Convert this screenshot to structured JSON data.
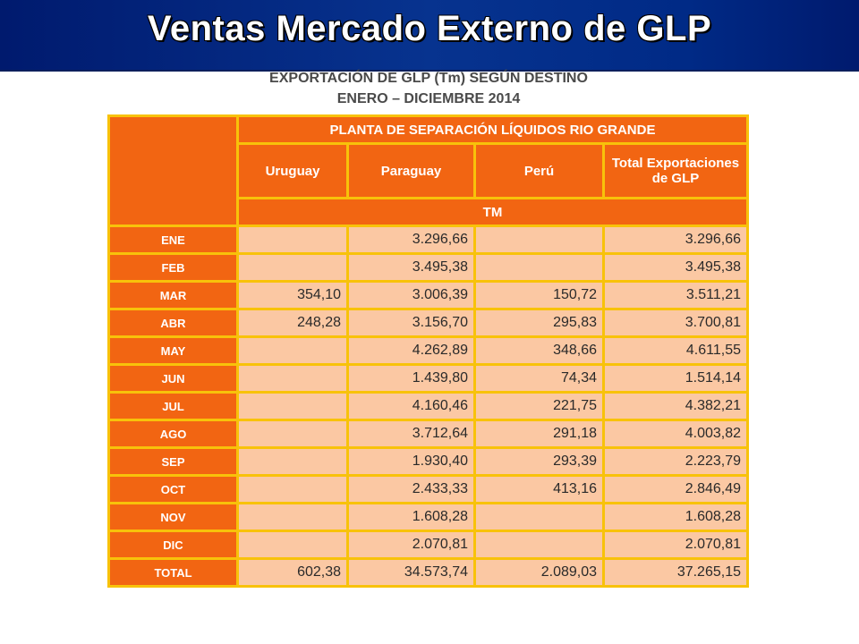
{
  "slide": {
    "title": "Ventas Mercado Externo de GLP"
  },
  "table": {
    "title_line1": "EXPORTACIÓN DE GLP (Tm) SEGÚN DESTINO",
    "title_line2": "ENERO – DICIEMBRE 2014",
    "plant_header": "PLANTA DE SEPARACIÓN LÍQUIDOS RIO GRANDE",
    "columns": [
      "Uruguay",
      "Paraguay",
      "Perú",
      "Total Exportaciones de GLP"
    ],
    "unit": "TM",
    "rows": [
      {
        "month": "ENE",
        "uruguay": "",
        "paraguay": "3.296,66",
        "peru": "",
        "total": "3.296,66"
      },
      {
        "month": "FEB",
        "uruguay": "",
        "paraguay": "3.495,38",
        "peru": "",
        "total": "3.495,38"
      },
      {
        "month": "MAR",
        "uruguay": "354,10",
        "paraguay": "3.006,39",
        "peru": "150,72",
        "total": "3.511,21"
      },
      {
        "month": "ABR",
        "uruguay": "248,28",
        "paraguay": "3.156,70",
        "peru": "295,83",
        "total": "3.700,81"
      },
      {
        "month": "MAY",
        "uruguay": "",
        "paraguay": "4.262,89",
        "peru": "348,66",
        "total": "4.611,55"
      },
      {
        "month": "JUN",
        "uruguay": "",
        "paraguay": "1.439,80",
        "peru": "74,34",
        "total": "1.514,14"
      },
      {
        "month": "JUL",
        "uruguay": "",
        "paraguay": "4.160,46",
        "peru": "221,75",
        "total": "4.382,21"
      },
      {
        "month": "AGO",
        "uruguay": "",
        "paraguay": "3.712,64",
        "peru": "291,18",
        "total": "4.003,82"
      },
      {
        "month": "SEP",
        "uruguay": "",
        "paraguay": "1.930,40",
        "peru": "293,39",
        "total": "2.223,79"
      },
      {
        "month": "OCT",
        "uruguay": "",
        "paraguay": "2.433,33",
        "peru": "413,16",
        "total": "2.846,49"
      },
      {
        "month": "NOV",
        "uruguay": "",
        "paraguay": "1.608,28",
        "peru": "",
        "total": "1.608,28"
      },
      {
        "month": "DIC",
        "uruguay": "",
        "paraguay": "2.070,81",
        "peru": "",
        "total": "2.070,81"
      },
      {
        "month": "TOTAL",
        "uruguay": "602,38",
        "paraguay": "34.573,74",
        "peru": "2.089,03",
        "total": "37.265,15"
      }
    ]
  },
  "colors": {
    "banner": "#07338f",
    "header_fill": "#f26512",
    "cell_fill": "#fbc8a3",
    "grid_lines": "#f8c20a"
  }
}
